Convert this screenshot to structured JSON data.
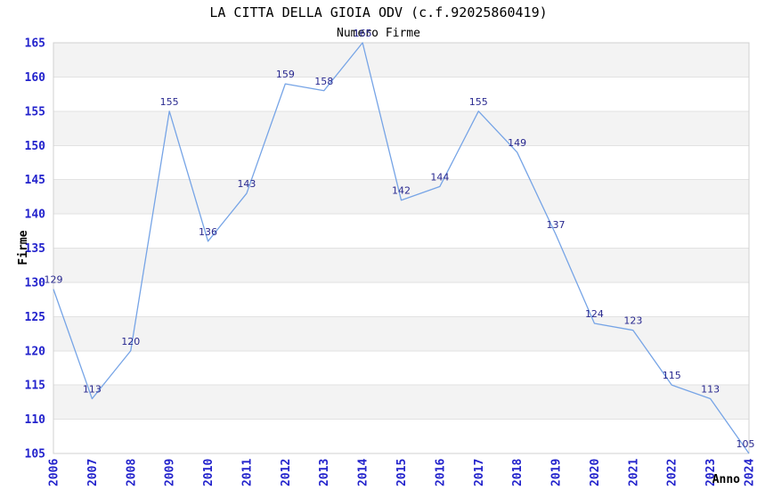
{
  "chart_data": {
    "type": "line",
    "title": "LA CITTA DELLA GIOIA ODV (c.f.92025860419)",
    "subtitle": "Numero Firme",
    "xlabel": "Anno",
    "ylabel": "Firme",
    "x": [
      2006,
      2007,
      2008,
      2009,
      2010,
      2011,
      2012,
      2013,
      2014,
      2015,
      2016,
      2017,
      2018,
      2019,
      2020,
      2021,
      2022,
      2023,
      2024
    ],
    "values": [
      129,
      113,
      120,
      155,
      136,
      143,
      159,
      158,
      165,
      142,
      144,
      155,
      149,
      137,
      124,
      123,
      115,
      113,
      105
    ],
    "ylim": [
      105,
      165
    ],
    "ytick_step": 5,
    "xtick_rotation": -90,
    "grid": "horizontal-bands-alternating",
    "legend": "none",
    "colors": {
      "line": "#76a4e6",
      "point_label": "#28288f",
      "tick_label": "#2323cc",
      "band": "#f3f3f3",
      "gridline": "#e2e2e2",
      "frame": "#d0d0d0",
      "title": "#333333",
      "subtitle": "#555555",
      "axis_title": "#1a1a1a"
    }
  }
}
